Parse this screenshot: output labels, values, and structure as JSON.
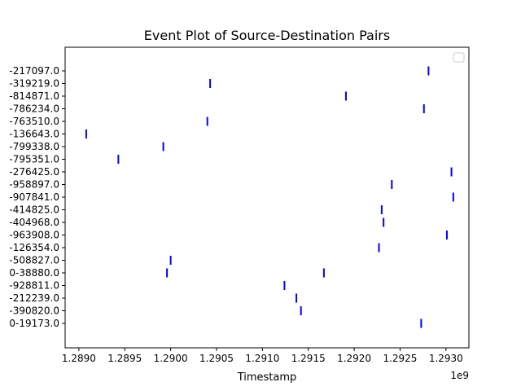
{
  "chart_data": {
    "type": "eventplot",
    "title": "Event Plot of Source-Destination Pairs",
    "xlabel": "Timestamp",
    "ylabel": "",
    "x_offset_label": "1e9",
    "xlim": [
      1.28885,
      1.29325
    ],
    "x_scale": 1000000000,
    "xticks": [
      1.289,
      1.2895,
      1.29,
      1.2905,
      1.291,
      1.2915,
      1.292,
      1.2925,
      1.293
    ],
    "xtick_labels": [
      "1.2890",
      "1.2895",
      "1.2900",
      "1.2905",
      "1.2910",
      "1.2915",
      "1.2920",
      "1.2925",
      "1.2930"
    ],
    "grid": false,
    "legend": {
      "placement": "top-right",
      "entries": []
    },
    "marker_color": "#0000ff",
    "categories": [
      "-217097.0",
      "-319219.0",
      "-814871.0",
      "-786234.0",
      "-763510.0",
      "-136643.0",
      "-799338.0",
      "-795351.0",
      "-276425.0",
      "-958897.0",
      "-907841.0",
      "-414825.0",
      "-404968.0",
      "-963908.0",
      "-126354.0",
      "-508827.0",
      "0-38880.0",
      "-928811.0",
      "-212239.0",
      "-390820.0",
      "0-19173.0"
    ],
    "events": [
      {
        "category": "-217097.0",
        "x": 1.29281
      },
      {
        "category": "-319219.0",
        "x": 1.29043
      },
      {
        "category": "-814871.0",
        "x": 1.29191
      },
      {
        "category": "-786234.0",
        "x": 1.29276
      },
      {
        "category": "-763510.0",
        "x": 1.2904
      },
      {
        "category": "-136643.0",
        "x": 1.28908
      },
      {
        "category": "-799338.0",
        "x": 1.28992
      },
      {
        "category": "-795351.0",
        "x": 1.28943
      },
      {
        "category": "-276425.0",
        "x": 1.29306
      },
      {
        "category": "-958897.0",
        "x": 1.29241
      },
      {
        "category": "-907841.0",
        "x": 1.29308
      },
      {
        "category": "-414825.0",
        "x": 1.2923
      },
      {
        "category": "-404968.0",
        "x": 1.29232
      },
      {
        "category": "-963908.0",
        "x": 1.29301
      },
      {
        "category": "-126354.0",
        "x": 1.29227
      },
      {
        "category": "-508827.0",
        "x": 1.29
      },
      {
        "category": "0-38880.0",
        "x": 1.28996
      },
      {
        "category": "0-38880.0",
        "x": 1.29167
      },
      {
        "category": "-928811.0",
        "x": 1.29124
      },
      {
        "category": "-212239.0",
        "x": 1.29137
      },
      {
        "category": "-390820.0",
        "x": 1.29142
      },
      {
        "category": "0-19173.0",
        "x": 1.29273
      }
    ]
  }
}
